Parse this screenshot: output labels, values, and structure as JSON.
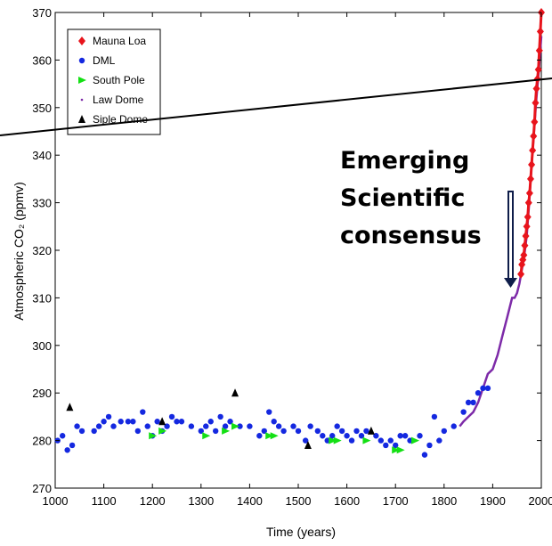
{
  "chart_data": {
    "type": "scatter",
    "xlabel": "Time (years)",
    "ylabel": "Atmospheric CO₂ (ppmv)",
    "xlim": [
      1000,
      2000
    ],
    "ylim": [
      270,
      370
    ],
    "xticks": [
      "1000",
      "1100",
      "1200",
      "1300",
      "1400",
      "1500",
      "1600",
      "1700",
      "1800",
      "1900",
      "2000"
    ],
    "yticks": [
      "270",
      "280",
      "290",
      "300",
      "310",
      "320",
      "330",
      "340",
      "350",
      "360",
      "370"
    ],
    "grid": false,
    "legend_position": "top-left",
    "annotation": [
      "Emerging",
      "Scientific",
      "consensus"
    ],
    "series": [
      {
        "name": "Mauna Loa",
        "color": "#e8141c",
        "marker": "diamond",
        "points": [
          [
            1958,
            315
          ],
          [
            1960,
            317
          ],
          [
            1962,
            318
          ],
          [
            1964,
            319
          ],
          [
            1966,
            321
          ],
          [
            1968,
            323
          ],
          [
            1970,
            325
          ],
          [
            1972,
            327
          ],
          [
            1974,
            330
          ],
          [
            1976,
            332
          ],
          [
            1978,
            335
          ],
          [
            1980,
            338
          ],
          [
            1982,
            341
          ],
          [
            1984,
            344
          ],
          [
            1986,
            347
          ],
          [
            1988,
            351
          ],
          [
            1990,
            354
          ],
          [
            1992,
            356
          ],
          [
            1994,
            358
          ],
          [
            1996,
            362
          ],
          [
            1998,
            366
          ],
          [
            2000,
            370
          ]
        ]
      },
      {
        "name": "DML",
        "color": "#1428e0",
        "marker": "circle",
        "points": [
          [
            1005,
            280
          ],
          [
            1015,
            281
          ],
          [
            1025,
            278
          ],
          [
            1035,
            279
          ],
          [
            1045,
            283
          ],
          [
            1055,
            282
          ],
          [
            1080,
            282
          ],
          [
            1090,
            283
          ],
          [
            1100,
            284
          ],
          [
            1110,
            285
          ],
          [
            1120,
            283
          ],
          [
            1135,
            284
          ],
          [
            1150,
            284
          ],
          [
            1160,
            284
          ],
          [
            1170,
            282
          ],
          [
            1180,
            286
          ],
          [
            1190,
            283
          ],
          [
            1200,
            281
          ],
          [
            1210,
            284
          ],
          [
            1220,
            282
          ],
          [
            1230,
            283
          ],
          [
            1240,
            285
          ],
          [
            1250,
            284
          ],
          [
            1260,
            284
          ],
          [
            1280,
            283
          ],
          [
            1300,
            282
          ],
          [
            1310,
            283
          ],
          [
            1320,
            284
          ],
          [
            1330,
            282
          ],
          [
            1340,
            285
          ],
          [
            1350,
            283
          ],
          [
            1360,
            284
          ],
          [
            1380,
            283
          ],
          [
            1400,
            283
          ],
          [
            1420,
            281
          ],
          [
            1430,
            282
          ],
          [
            1440,
            286
          ],
          [
            1450,
            284
          ],
          [
            1460,
            283
          ],
          [
            1470,
            282
          ],
          [
            1490,
            283
          ],
          [
            1500,
            282
          ],
          [
            1515,
            280
          ],
          [
            1525,
            283
          ],
          [
            1540,
            282
          ],
          [
            1550,
            281
          ],
          [
            1560,
            280
          ],
          [
            1570,
            281
          ],
          [
            1580,
            283
          ],
          [
            1590,
            282
          ],
          [
            1600,
            281
          ],
          [
            1610,
            280
          ],
          [
            1620,
            282
          ],
          [
            1630,
            281
          ],
          [
            1640,
            282
          ],
          [
            1660,
            281
          ],
          [
            1670,
            280
          ],
          [
            1680,
            279
          ],
          [
            1690,
            280
          ],
          [
            1700,
            279
          ],
          [
            1710,
            281
          ],
          [
            1720,
            281
          ],
          [
            1730,
            280
          ],
          [
            1750,
            281
          ],
          [
            1760,
            277
          ],
          [
            1770,
            279
          ],
          [
            1780,
            285
          ],
          [
            1790,
            280
          ],
          [
            1800,
            282
          ],
          [
            1820,
            283
          ],
          [
            1840,
            286
          ],
          [
            1850,
            288
          ],
          [
            1860,
            288
          ],
          [
            1870,
            290
          ],
          [
            1880,
            291
          ],
          [
            1890,
            291
          ]
        ]
      },
      {
        "name": "South Pole",
        "color": "#14e014",
        "marker": "triangle-right",
        "points": [
          [
            1200,
            281
          ],
          [
            1220,
            282
          ],
          [
            1310,
            281
          ],
          [
            1350,
            282
          ],
          [
            1370,
            283
          ],
          [
            1440,
            281
          ],
          [
            1450,
            281
          ],
          [
            1570,
            280
          ],
          [
            1580,
            280
          ],
          [
            1640,
            280
          ],
          [
            1700,
            278
          ],
          [
            1710,
            278
          ],
          [
            1740,
            280
          ]
        ]
      },
      {
        "name": "Law Dome",
        "color": "#7d2aa8",
        "marker": "line",
        "points": [
          [
            1832,
            283
          ],
          [
            1840,
            284
          ],
          [
            1850,
            285
          ],
          [
            1860,
            286
          ],
          [
            1870,
            288
          ],
          [
            1880,
            291
          ],
          [
            1890,
            294
          ],
          [
            1900,
            295
          ],
          [
            1910,
            298
          ],
          [
            1920,
            302
          ],
          [
            1930,
            306
          ],
          [
            1940,
            310
          ],
          [
            1945,
            310
          ],
          [
            1950,
            311
          ],
          [
            1955,
            313
          ],
          [
            1960,
            316
          ],
          [
            1965,
            319
          ],
          [
            1970,
            323
          ],
          [
            1975,
            330
          ],
          [
            1980,
            338
          ],
          [
            1985,
            345
          ],
          [
            1990,
            352
          ],
          [
            1995,
            358
          ],
          [
            2000,
            365
          ]
        ]
      },
      {
        "name": "Siple Dome",
        "color": "#000000",
        "marker": "triangle-up",
        "points": [
          [
            1030,
            287
          ],
          [
            1220,
            284
          ],
          [
            1370,
            290
          ],
          [
            1520,
            279
          ],
          [
            1650,
            282
          ]
        ]
      }
    ]
  }
}
